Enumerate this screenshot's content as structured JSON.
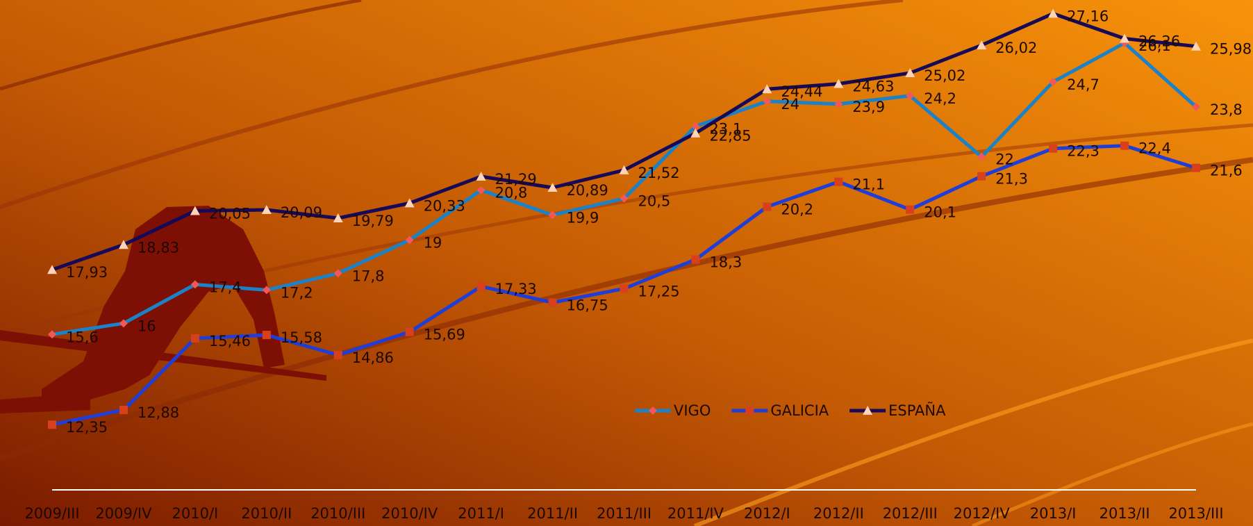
{
  "chart_data": {
    "type": "line",
    "categories": [
      "2009/III",
      "2009/IV",
      "2010/I",
      "2010/II",
      "2010/III",
      "2010/IV",
      "2011/I",
      "2011/II",
      "2011/III",
      "2011/IV",
      "2012/I",
      "2012/II",
      "2012/III",
      "2012/IV",
      "2013/I",
      "2013/II",
      "2013/III"
    ],
    "ylim": [
      10,
      28
    ],
    "legend": "bottom-center",
    "series": [
      {
        "name": "VIGO",
        "color": "#1b82c8",
        "marker": "diamond",
        "marker_color": "#f2585a",
        "values": [
          15.6,
          16,
          17.4,
          17.2,
          17.8,
          19,
          20.8,
          19.9,
          20.5,
          23.1,
          24,
          23.9,
          24.2,
          22,
          24.7,
          26.1,
          23.8
        ],
        "value_labels": [
          "15,6",
          "16",
          "17,4",
          "17,2",
          "17,8",
          "19",
          "20,8",
          "19,9",
          "20,5",
          "23,1",
          "24",
          "23,9",
          "24,2",
          "22",
          "24,7",
          "26,1",
          "23,8"
        ]
      },
      {
        "name": "GALICIA",
        "color": "#1f3ed8",
        "marker": "square",
        "marker_color": "#d8401c",
        "values": [
          12.35,
          12.88,
          15.46,
          15.58,
          14.86,
          15.69,
          17.33,
          16.75,
          17.25,
          18.3,
          20.2,
          21.1,
          20.1,
          21.3,
          22.3,
          22.4,
          21.6
        ],
        "value_labels": [
          "12,35",
          "12,88",
          "15,46",
          "15,58",
          "14,86",
          "15,69",
          "17,33",
          "16,75",
          "17,25",
          "18,3",
          "20,2",
          "21,1",
          "20,1",
          "21,3",
          "22,3",
          "22,4",
          "21,6"
        ]
      },
      {
        "name": "ESPAÑA",
        "color": "#160a58",
        "marker": "triangle",
        "marker_color": "#ffd3b5",
        "values": [
          17.93,
          18.83,
          20.05,
          20.09,
          19.79,
          20.33,
          21.29,
          20.89,
          21.52,
          22.85,
          24.44,
          24.63,
          25.02,
          26.02,
          27.16,
          26.26,
          25.98
        ],
        "value_labels": [
          "17,93",
          "18,83",
          "20,05",
          "20,09",
          "19,79",
          "20,33",
          "21,29",
          "20,89",
          "21,52",
          "22,85",
          "24,44",
          "24,63",
          "25,02",
          "26,02",
          "27,16",
          "26,26",
          "25,98"
        ]
      }
    ]
  }
}
